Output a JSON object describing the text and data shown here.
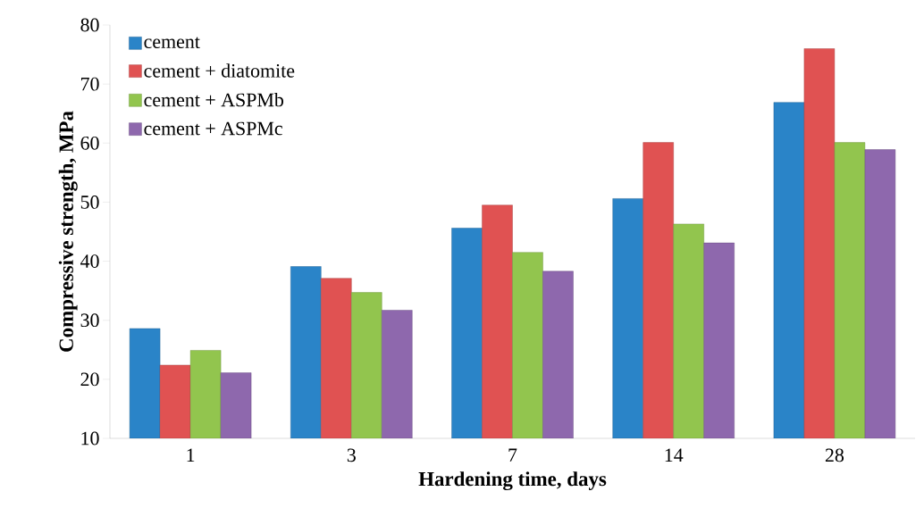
{
  "chart_data": {
    "type": "bar",
    "xlabel": "Hardening time, days",
    "ylabel": "Compressive strength, MPa",
    "categories": [
      "1",
      "3",
      "7",
      "14",
      "28"
    ],
    "series": [
      {
        "name": "cement",
        "color": "#2a84c8",
        "values": [
          28.6,
          39.1,
          45.6,
          50.6,
          66.9
        ]
      },
      {
        "name": "cement + diatomite",
        "color": "#e05252",
        "values": [
          22.4,
          37.1,
          49.5,
          60.1,
          76.0
        ]
      },
      {
        "name": "cement + ASPMb",
        "color": "#92c54e",
        "values": [
          24.9,
          34.7,
          41.5,
          46.3,
          60.1
        ]
      },
      {
        "name": "cement + ASPMc",
        "color": "#8e68ad",
        "values": [
          21.1,
          31.7,
          38.3,
          43.1,
          58.9
        ]
      }
    ],
    "ylim": [
      10,
      80
    ],
    "yticks": [
      10,
      20,
      30,
      40,
      50,
      60,
      70,
      80
    ],
    "grid": false,
    "legend": "top left"
  }
}
